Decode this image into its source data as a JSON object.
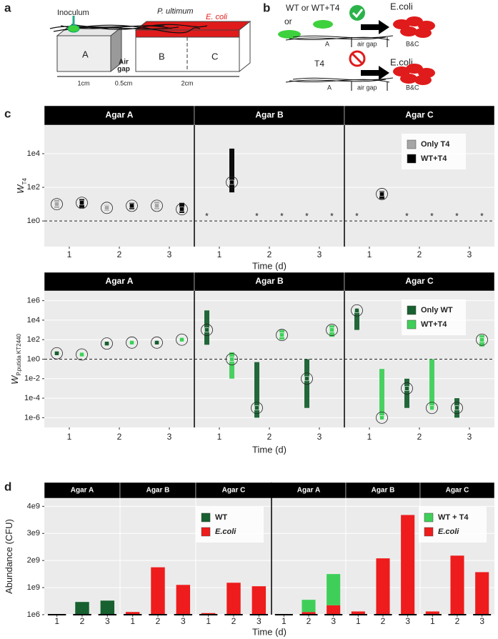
{
  "panel_labels": [
    "a",
    "b",
    "c",
    "d"
  ],
  "diagram_a": {
    "inoculum": "Inoculum",
    "p_ultimum": "P. ultimum",
    "e_coli": "E. coli",
    "boxes": [
      "A",
      "B",
      "C"
    ],
    "air_gap": [
      "Air",
      "gap"
    ],
    "dims": [
      "1cm",
      "0.5cm",
      "2cm"
    ]
  },
  "diagram_b": {
    "top": {
      "strain": "WT or WT+T4",
      "or": "or",
      "target": "E.coli",
      "zones": [
        "A",
        "air gap",
        "B&C"
      ]
    },
    "bottom": {
      "strain": "T4",
      "target": "E.coli",
      "zones": [
        "A",
        "air gap",
        "B&C"
      ]
    }
  },
  "chart_data": [
    {
      "type": "range",
      "facets": [
        "Agar A",
        "Agar B",
        "Agar C"
      ],
      "categories": [
        "1",
        "2",
        "3"
      ],
      "xlabel": "Time (d)",
      "ylabel": "W",
      "ylabel_sub": "T4",
      "log_y": true,
      "ylim": [
        0.03,
        500000
      ],
      "yticks": [
        {
          "value": 1,
          "label": "1e0"
        },
        {
          "value": 100,
          "label": "1e2"
        },
        {
          "value": 10000,
          "label": "1e4"
        }
      ],
      "reference_line": 1,
      "missing_label": "*",
      "legend": "top-right",
      "series": [
        {
          "name": "Only T4",
          "color": "#a6a6a6",
          "values": [
            [
              10,
              6,
              8
            ],
            [
              null,
              null,
              null
            ],
            [
              null,
              null,
              null
            ]
          ],
          "low": [
            [
              6,
              4,
              5
            ],
            [
              null,
              null,
              null
            ],
            [
              null,
              null,
              null
            ]
          ],
          "high": [
            [
              18,
              9,
              14
            ],
            [
              null,
              null,
              null
            ],
            [
              null,
              null,
              null
            ]
          ]
        },
        {
          "name": "WT+T4",
          "color": "#000000",
          "values": [
            [
              12,
              8,
              5
            ],
            [
              200,
              null,
              null
            ],
            [
              40,
              null,
              null
            ]
          ],
          "low": [
            [
              6,
              5,
              3
            ],
            [
              50,
              null,
              null
            ],
            [
              20,
              null,
              null
            ]
          ],
          "high": [
            [
              20,
              12,
              12
            ],
            [
              20000,
              null,
              null
            ],
            [
              60,
              null,
              null
            ]
          ]
        }
      ]
    },
    {
      "type": "range",
      "facets": [
        "Agar A",
        "Agar B",
        "Agar C"
      ],
      "categories": [
        "1",
        "2",
        "3"
      ],
      "xlabel": "Time (d)",
      "ylabel": "W",
      "ylabel_sub": "P.putida KT2440",
      "log_y": true,
      "ylim": [
        1e-07,
        10000000
      ],
      "yticks": [
        {
          "value": 1e-06,
          "label": "1e-6"
        },
        {
          "value": 0.0001,
          "label": "1e-4"
        },
        {
          "value": 0.01,
          "label": "1e-2"
        },
        {
          "value": 1,
          "label": "1e0"
        },
        {
          "value": 100,
          "label": "1e2"
        },
        {
          "value": 10000,
          "label": "1e4"
        },
        {
          "value": 1000000,
          "label": "1e6"
        }
      ],
      "reference_line": 1,
      "legend": "top-right",
      "series": [
        {
          "name": "Only WT",
          "color": "#17602f",
          "values": [
            [
              4,
              40,
              50
            ],
            [
              1000,
              1e-05,
              0.01
            ],
            [
              100000,
              0.001,
              1e-05
            ]
          ],
          "low": [
            [
              3,
              25,
              35
            ],
            [
              30,
              1e-06,
              1e-05
            ],
            [
              1000,
              1e-05,
              1e-06
            ]
          ],
          "high": [
            [
              6,
              60,
              70
            ],
            [
              100000,
              0.5,
              1
            ],
            [
              100000,
              0.01,
              0.0001
            ]
          ]
        },
        {
          "name": "WT+T4",
          "color": "#3fcf59",
          "values": [
            [
              3,
              50,
              100
            ],
            [
              1,
              300,
              1000
            ],
            [
              1e-06,
              1e-05,
              100
            ]
          ],
          "low": [
            [
              2,
              35,
              70
            ],
            [
              0.01,
              100,
              200
            ],
            [
              1e-06,
              1e-05,
              20
            ]
          ],
          "high": [
            [
              4,
              70,
              140
            ],
            [
              5,
              1000,
              3000
            ],
            [
              0.1,
              1,
              300
            ]
          ]
        }
      ]
    },
    {
      "type": "bar",
      "facets": [
        "Agar A",
        "Agar B",
        "Agar C"
      ],
      "categories": [
        "1",
        "2",
        "3"
      ],
      "ylabel": "Abundance (CFU)",
      "ylim": [
        0,
        4300000000
      ],
      "yticks": [
        {
          "value": 1000000,
          "label": "1e6"
        },
        {
          "value": 1000000000,
          "label": "1e9"
        },
        {
          "value": 2000000000,
          "label": "2e9"
        },
        {
          "value": 3000000000,
          "label": "3e9"
        },
        {
          "value": 4000000000,
          "label": "4e9"
        }
      ],
      "legend": "top-right",
      "series": [
        {
          "name": "WT",
          "color": "#17602f",
          "values": [
            [
              20000000,
              470000000,
              520000000
            ],
            [
              null,
              null,
              null
            ],
            [
              null,
              null,
              null
            ]
          ]
        },
        {
          "name": "E.coli",
          "color": "#ee1c1c",
          "italic": true,
          "values": [
            [
              null,
              null,
              null
            ],
            [
              100000000,
              1750000000,
              1100000000
            ],
            [
              60000000,
              1180000000,
              1050000000
            ]
          ]
        }
      ]
    },
    {
      "type": "bar",
      "facets": [
        "Agar A",
        "Agar B",
        "Agar C"
      ],
      "categories": [
        "1",
        "2",
        "3"
      ],
      "xlabel": "Time (d)",
      "legend": "top-right",
      "series": [
        {
          "name": "WT + T4",
          "color": "#3fcf59",
          "values": [
            [
              20000000,
              450000000,
              1150000000
            ],
            [
              null,
              null,
              null
            ],
            [
              null,
              null,
              null
            ]
          ]
        },
        {
          "name": "E.coli",
          "color": "#ee1c1c",
          "italic": true,
          "values": [
            [
              null,
              100000000,
              350000000
            ],
            [
              120000000,
              2080000000,
              3680000000
            ],
            [
              120000000,
              2180000000,
              1570000000
            ]
          ]
        }
      ]
    }
  ]
}
